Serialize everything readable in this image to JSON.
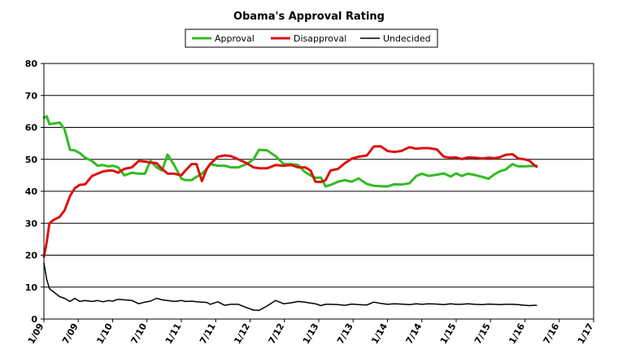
{
  "chart_data": {
    "type": "line",
    "title": "Obama's Approval Rating",
    "xlabel": "",
    "ylabel": "",
    "ylim": [
      0,
      80
    ],
    "yticks": [
      0,
      10,
      20,
      30,
      40,
      50,
      60,
      70,
      80
    ],
    "xlim": [
      2009.0,
      2017.0
    ],
    "xticks": [
      "1/09",
      "7/09",
      "1/10",
      "7/10",
      "1/11",
      "7/11",
      "1/12",
      "7/12",
      "1/13",
      "7/13",
      "1/14",
      "7/14",
      "1/15",
      "7/15",
      "1/16",
      "7/16",
      "1/17"
    ],
    "grid": "horizontal",
    "legend_position": "top-center",
    "series": [
      {
        "name": "Approval",
        "color": "#33bb22",
        "x": [
          2009.0,
          2009.04,
          2009.08,
          2009.14,
          2009.23,
          2009.3,
          2009.38,
          2009.45,
          2009.52,
          2009.6,
          2009.7,
          2009.78,
          2009.86,
          2009.94,
          2010.0,
          2010.08,
          2010.17,
          2010.28,
          2010.38,
          2010.47,
          2010.55,
          2010.64,
          2010.72,
          2010.8,
          2010.9,
          2011.0,
          2011.06,
          2011.15,
          2011.22,
          2011.3,
          2011.37,
          2011.42,
          2011.53,
          2011.63,
          2011.72,
          2011.83,
          2011.95,
          2012.05,
          2012.13,
          2012.25,
          2012.37,
          2012.49,
          2012.6,
          2012.7,
          2012.8,
          2012.88,
          2012.95,
          2013.03,
          2013.1,
          2013.17,
          2013.28,
          2013.38,
          2013.48,
          2013.58,
          2013.7,
          2013.8,
          2013.9,
          2014.0,
          2014.1,
          2014.2,
          2014.32,
          2014.42,
          2014.5,
          2014.6,
          2014.72,
          2014.82,
          2014.92,
          2015.0,
          2015.08,
          2015.17,
          2015.27,
          2015.38,
          2015.47,
          2015.55,
          2015.63,
          2015.72,
          2015.82,
          2015.9,
          2016.0,
          2016.07,
          2016.13,
          2016.17
        ],
        "values": [
          63,
          63.5,
          61,
          61.2,
          61.5,
          59.5,
          53,
          52.8,
          52,
          50.5,
          49.5,
          48,
          48.2,
          47.8,
          48,
          47.5,
          45,
          45.8,
          45.5,
          45.5,
          49.5,
          47.5,
          46.5,
          51.5,
          48,
          44,
          43.5,
          43.5,
          44.5,
          45.5,
          47,
          48.5,
          48,
          48,
          47.5,
          47.5,
          48.5,
          50,
          53,
          52.8,
          51,
          48.5,
          48.5,
          48.2,
          46,
          45,
          44.2,
          44.3,
          41.5,
          42,
          43,
          43.5,
          43,
          44,
          42.3,
          41.7,
          41.6,
          41.5,
          42.2,
          42.1,
          42.5,
          44.8,
          45.5,
          44.8,
          45.2,
          45.6,
          44.6,
          45.6,
          44.8,
          45.5,
          45.1,
          44.5,
          43.9,
          45.2,
          46.2,
          46.8,
          48.5,
          47.8,
          47.8,
          47.9,
          47.9,
          48
        ],
        "values_note": ""
      },
      {
        "name": "Disapproval",
        "color": "#dd1111",
        "x": [
          2009.0,
          2009.04,
          2009.08,
          2009.14,
          2009.23,
          2009.3,
          2009.38,
          2009.45,
          2009.52,
          2009.6,
          2009.7,
          2009.78,
          2009.86,
          2009.94,
          2010.0,
          2010.08,
          2010.17,
          2010.28,
          2010.38,
          2010.47,
          2010.55,
          2010.64,
          2010.72,
          2010.8,
          2010.9,
          2011.0,
          2011.06,
          2011.15,
          2011.22,
          2011.3,
          2011.37,
          2011.42,
          2011.53,
          2011.63,
          2011.72,
          2011.83,
          2011.95,
          2012.05,
          2012.13,
          2012.25,
          2012.37,
          2012.49,
          2012.6,
          2012.7,
          2012.8,
          2012.88,
          2012.95,
          2013.03,
          2013.1,
          2013.17,
          2013.28,
          2013.38,
          2013.48,
          2013.58,
          2013.7,
          2013.8,
          2013.9,
          2014.0,
          2014.1,
          2014.2,
          2014.32,
          2014.42,
          2014.5,
          2014.6,
          2014.72,
          2014.82,
          2014.92,
          2015.0,
          2015.08,
          2015.17,
          2015.27,
          2015.38,
          2015.47,
          2015.55,
          2015.63,
          2015.72,
          2015.82,
          2015.9,
          2016.0,
          2016.07,
          2016.13,
          2016.17
        ],
        "values": [
          19.5,
          24,
          30,
          31,
          32,
          34,
          38.5,
          41,
          42,
          42.2,
          44.8,
          45.5,
          46.2,
          46.5,
          46.5,
          45.8,
          47,
          47.5,
          49.5,
          49.3,
          49,
          48.8,
          47,
          45.5,
          45.5,
          45,
          46.5,
          48.5,
          48.5,
          43.2,
          47,
          48.5,
          50.8,
          51.2,
          51,
          50,
          48.8,
          47.5,
          47.2,
          47.2,
          48.2,
          48,
          48.2,
          47.5,
          47.5,
          46.5,
          43,
          42.9,
          43.5,
          46.5,
          47,
          48.8,
          50.2,
          50.8,
          51.2,
          54,
          54.1,
          52.6,
          52.3,
          52.6,
          53.8,
          53.3,
          53.5,
          53.5,
          53.1,
          50.8,
          50.5,
          50.6,
          50.1,
          50.6,
          50.5,
          50.3,
          50.5,
          50.4,
          50.6,
          51.4,
          51.6,
          50.3,
          50,
          49.5,
          48.3,
          47.7
        ],
        "values_note": ""
      },
      {
        "name": "Undecided",
        "color": "#000000",
        "x": [
          2009.0,
          2009.04,
          2009.08,
          2009.14,
          2009.23,
          2009.3,
          2009.38,
          2009.45,
          2009.52,
          2009.6,
          2009.7,
          2009.78,
          2009.86,
          2009.94,
          2010.0,
          2010.08,
          2010.17,
          2010.28,
          2010.38,
          2010.47,
          2010.55,
          2010.64,
          2010.72,
          2010.8,
          2010.9,
          2011.0,
          2011.06,
          2011.15,
          2011.22,
          2011.3,
          2011.37,
          2011.42,
          2011.53,
          2011.63,
          2011.72,
          2011.83,
          2011.95,
          2012.05,
          2012.13,
          2012.25,
          2012.37,
          2012.49,
          2012.6,
          2012.7,
          2012.8,
          2012.88,
          2012.95,
          2013.03,
          2013.1,
          2013.17,
          2013.28,
          2013.38,
          2013.48,
          2013.58,
          2013.7,
          2013.8,
          2013.9,
          2014.0,
          2014.1,
          2014.2,
          2014.32,
          2014.42,
          2014.5,
          2014.6,
          2014.72,
          2014.82,
          2014.92,
          2015.0,
          2015.08,
          2015.17,
          2015.27,
          2015.38,
          2015.47,
          2015.55,
          2015.63,
          2015.72,
          2015.82,
          2015.9,
          2016.0,
          2016.07,
          2016.13,
          2016.17
        ],
        "values": [
          17.5,
          12.5,
          9.5,
          8.5,
          7,
          6.5,
          5.5,
          6.5,
          5.5,
          5.8,
          5.5,
          5.8,
          5.4,
          5.8,
          5.6,
          6.2,
          6,
          5.8,
          4.8,
          5.3,
          5.6,
          6.5,
          6,
          5.8,
          5.5,
          5.8,
          5.5,
          5.6,
          5.4,
          5.3,
          5.2,
          4.6,
          5.4,
          4.3,
          4.6,
          4.6,
          3.6,
          2.8,
          2.7,
          4.1,
          5.8,
          4.8,
          5.1,
          5.5,
          5.3,
          5.0,
          4.8,
          4.2,
          4.6,
          4.6,
          4.5,
          4.3,
          4.7,
          4.5,
          4.4,
          5.3,
          4.9,
          4.6,
          4.8,
          4.7,
          4.5,
          4.8,
          4.6,
          4.8,
          4.7,
          4.5,
          4.8,
          4.6,
          4.6,
          4.8,
          4.6,
          4.5,
          4.7,
          4.6,
          4.5,
          4.6,
          4.6,
          4.5,
          4.3,
          4.2,
          4.3,
          4.3
        ],
        "values_note": ""
      }
    ]
  }
}
